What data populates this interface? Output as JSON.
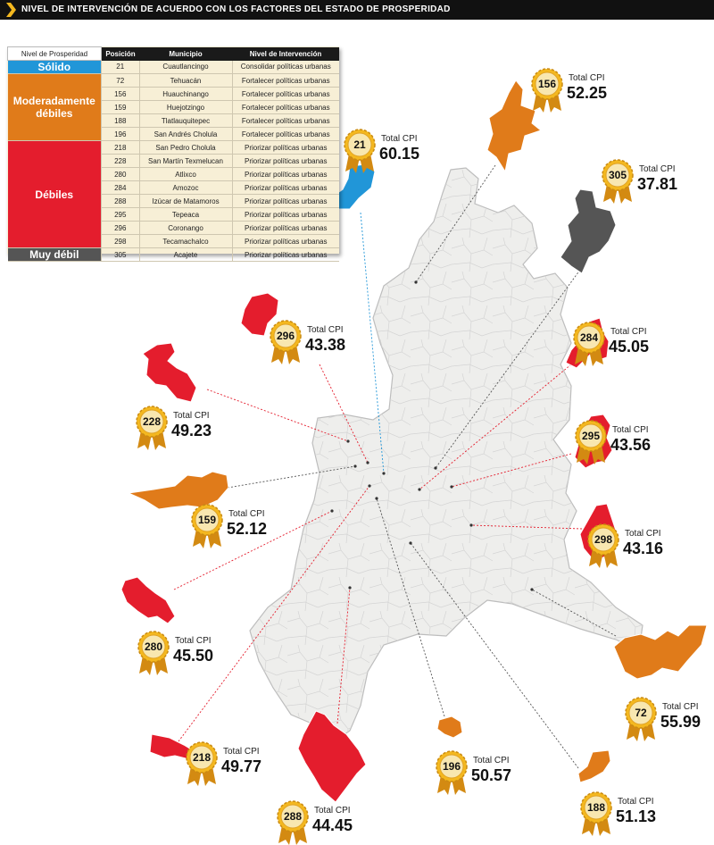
{
  "header": {
    "title": "NIVEL DE INTERVENCIÓN DE ACUERDO CON LOS FACTORES DEL ESTADO DE PROSPERIDAD"
  },
  "colors": {
    "solido": "#2196d8",
    "moderado": "#e07b1a",
    "debil": "#e41d2d",
    "muy_debil": "#555555",
    "medal": "#f4b81f"
  },
  "table": {
    "headers": [
      "Nivel de Prosperidad",
      "Posición",
      "Municipio",
      "Nivel de Intervención"
    ],
    "groups": [
      {
        "level": "Sólido",
        "color": "#2196d8",
        "rows": [
          {
            "pos": "21",
            "municipio": "Cuautlancingo",
            "intervencion": "Consolidar políticas urbanas"
          }
        ]
      },
      {
        "level": "Moderadamente débiles",
        "color": "#e07b1a",
        "rows": [
          {
            "pos": "72",
            "municipio": "Tehuacán",
            "intervencion": "Fortalecer políticas urbanas"
          },
          {
            "pos": "156",
            "municipio": "Huauchinango",
            "intervencion": "Fortalecer políticas urbanas"
          },
          {
            "pos": "159",
            "municipio": "Huejotzingo",
            "intervencion": "Fortalecer políticas urbanas"
          },
          {
            "pos": "188",
            "municipio": "Tlatlauquitepec",
            "intervencion": "Fortalecer políticas urbanas"
          },
          {
            "pos": "196",
            "municipio": "San Andrés Cholula",
            "intervencion": "Fortalecer políticas urbanas"
          }
        ]
      },
      {
        "level": "Débiles",
        "color": "#e41d2d",
        "rows": [
          {
            "pos": "218",
            "municipio": "San Pedro Cholula",
            "intervencion": "Priorizar políticas urbanas"
          },
          {
            "pos": "228",
            "municipio": "San Martín Texmelucan",
            "intervencion": "Priorizar políticas urbanas"
          },
          {
            "pos": "280",
            "municipio": "Atlixco",
            "intervencion": "Priorizar políticas urbanas"
          },
          {
            "pos": "284",
            "municipio": "Amozoc",
            "intervencion": "Priorizar políticas urbanas"
          },
          {
            "pos": "288",
            "municipio": "Izúcar de Matamoros",
            "intervencion": "Priorizar políticas urbanas"
          },
          {
            "pos": "295",
            "municipio": "Tepeaca",
            "intervencion": "Priorizar políticas urbanas"
          },
          {
            "pos": "296",
            "municipio": "Coronango",
            "intervencion": "Priorizar políticas urbanas"
          },
          {
            "pos": "298",
            "municipio": "Tecamachalco",
            "intervencion": "Priorizar políticas urbanas"
          }
        ]
      },
      {
        "level": "Muy débil",
        "color": "#555555",
        "rows": [
          {
            "pos": "305",
            "municipio": "Acajete",
            "intervencion": "Priorizar políticas urbanas"
          }
        ]
      }
    ]
  },
  "callouts": [
    {
      "rank": "21",
      "label": "Total CPI",
      "value": "60.15",
      "color": "#2196d8"
    },
    {
      "rank": "156",
      "label": "Total CPI",
      "value": "52.25",
      "color": "#e07b1a"
    },
    {
      "rank": "305",
      "label": "Total CPI",
      "value": "37.81",
      "color": "#555555"
    },
    {
      "rank": "296",
      "label": "Total CPI",
      "value": "43.38",
      "color": "#e41d2d"
    },
    {
      "rank": "284",
      "label": "Total CPI",
      "value": "45.05",
      "color": "#e41d2d"
    },
    {
      "rank": "228",
      "label": "Total CPI",
      "value": "49.23",
      "color": "#e41d2d"
    },
    {
      "rank": "295",
      "label": "Total CPI",
      "value": "43.56",
      "color": "#e41d2d"
    },
    {
      "rank": "159",
      "label": "Total CPI",
      "value": "52.12",
      "color": "#e07b1a"
    },
    {
      "rank": "298",
      "label": "Total CPI",
      "value": "43.16",
      "color": "#e41d2d"
    },
    {
      "rank": "280",
      "label": "Total CPI",
      "value": "45.50",
      "color": "#e41d2d"
    },
    {
      "rank": "72",
      "label": "Total CPI",
      "value": "55.99",
      "color": "#e07b1a"
    },
    {
      "rank": "218",
      "label": "Total CPI",
      "value": "49.77",
      "color": "#e41d2d"
    },
    {
      "rank": "196",
      "label": "Total CPI",
      "value": "50.57",
      "color": "#e07b1a"
    },
    {
      "rank": "188",
      "label": "Total CPI",
      "value": "51.13",
      "color": "#e07b1a"
    },
    {
      "rank": "288",
      "label": "Total CPI",
      "value": "44.45",
      "color": "#e41d2d"
    }
  ]
}
